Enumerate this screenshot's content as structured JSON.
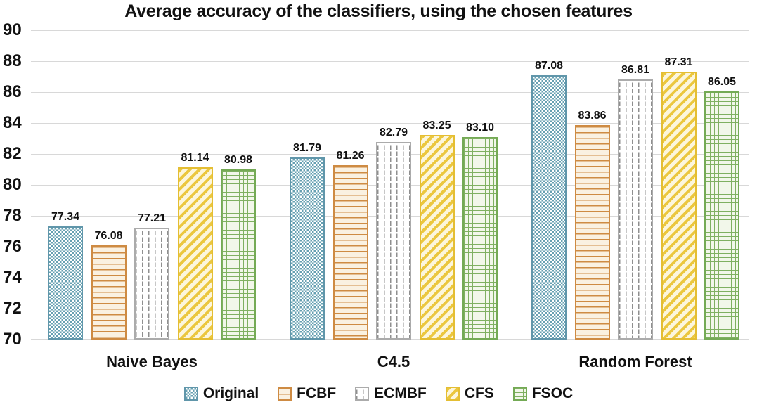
{
  "chart_data": {
    "type": "bar",
    "title": "Average accuracy of the classifiers, using the chosen features",
    "categories": [
      "Naive Bayes",
      "C4.5",
      "Random Forest"
    ],
    "series": [
      {
        "name": "Original",
        "pattern": "checker",
        "color": "#6096AA",
        "values": [
          77.34,
          81.79,
          87.08
        ],
        "labels": [
          "77.34",
          "81.79",
          "87.08"
        ]
      },
      {
        "name": "FCBF",
        "pattern": "hlines",
        "color": "#CE8B43",
        "values": [
          76.08,
          81.26,
          83.86
        ],
        "labels": [
          "76.08",
          "81.26",
          "83.86"
        ]
      },
      {
        "name": "ECMBF",
        "pattern": "vdash",
        "color": "#ABABAB",
        "values": [
          77.21,
          82.79,
          86.81
        ],
        "labels": [
          "77.21",
          "82.79",
          "86.81"
        ]
      },
      {
        "name": "CFS",
        "pattern": "diag",
        "color": "#E4BE33",
        "values": [
          81.14,
          83.25,
          87.31
        ],
        "labels": [
          "81.14",
          "83.25",
          "87.31"
        ]
      },
      {
        "name": "FSOC",
        "pattern": "grid",
        "color": "#74AA55",
        "values": [
          80.98,
          83.1,
          86.05
        ],
        "labels": [
          "80.98",
          "83.10",
          "86.05"
        ]
      }
    ],
    "ylim": [
      70,
      90
    ],
    "ytick_step": 2,
    "yticks": [
      "70",
      "72",
      "74",
      "76",
      "78",
      "80",
      "82",
      "84",
      "86",
      "88",
      "90"
    ],
    "grid": true,
    "legend_position": "bottom",
    "value_labels": true
  }
}
